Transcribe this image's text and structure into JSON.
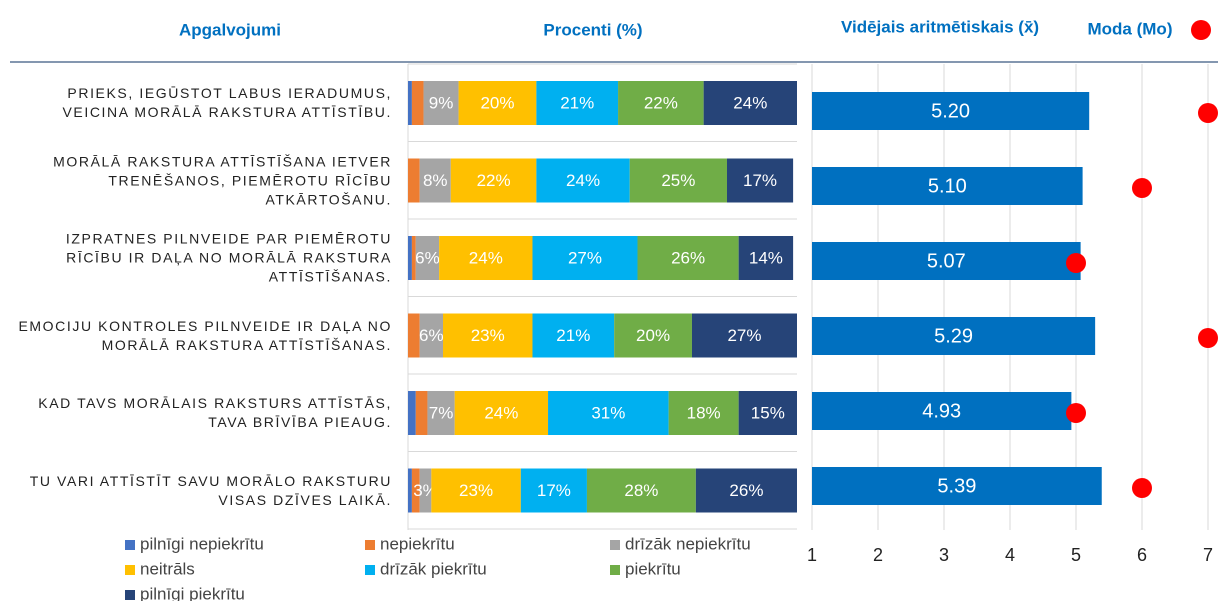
{
  "chart_data": [
    {
      "type": "stacked-barh",
      "title": "Procenti (%)",
      "ylabel": "Apgalvojumi",
      "categories": [
        "PRIEKS, IEGŪSTOT LABUS IERADUMUS, VEICINA MORĀLĀ RAKSTURA ATTĪSTĪBU.",
        "MORĀLĀ RAKSTURA ATTĪSTĪŠANA IETVER TRENĒŠANOS, PIEMĒROTU RĪCĪBU ATKĀRTOŠANU.",
        "IZPRATNES PILNVEIDE PAR PIEMĒROTU RĪCĪBU IR DAĻA NO MORĀLĀ RAKSTURA ATTĪSTĪŠANAS.",
        "EMOCIJU KONTROLES PILNVEIDE IR DAĻA NO MORĀLĀ RAKSTURA ATTĪSTĪŠANAS.",
        "KAD TAVS MORĀLAIS RAKSTURS ATTĪSTĀS, TAVA BRĪVĪBA PIEAUG.",
        "TU VARI ATTĪSTĪT SAVU MORĀLO RAKSTURU VISAS DZĪVES LAIKĀ."
      ],
      "xlim": [
        0,
        100
      ],
      "series": [
        {
          "name": "pilnīgi nepiekrītu",
          "color": "#4472c4",
          "values": [
            1,
            0,
            1,
            0,
            2,
            1
          ],
          "value_labels": [
            null,
            null,
            null,
            null,
            null,
            null
          ]
        },
        {
          "name": "nepiekrītu",
          "color": "#ed7d31",
          "values": [
            3,
            3,
            1,
            3,
            3,
            2
          ],
          "value_labels": [
            null,
            null,
            null,
            null,
            null,
            null
          ]
        },
        {
          "name": "drīzāk nepiekrītu",
          "color": "#a5a5a5",
          "values": [
            9,
            8,
            6,
            6,
            7,
            3
          ],
          "value_labels": [
            "9%",
            "8%",
            "6%",
            "6%",
            "7%",
            "3%"
          ]
        },
        {
          "name": "neitrāls",
          "color": "#ffc000",
          "values": [
            20,
            22,
            24,
            23,
            24,
            23
          ],
          "value_labels": [
            "20%",
            "22%",
            "24%",
            "23%",
            "24%",
            "23%"
          ]
        },
        {
          "name": "drīzāk piekrītu",
          "color": "#00b0f0",
          "values": [
            21,
            24,
            27,
            21,
            31,
            17
          ],
          "value_labels": [
            "21%",
            "24%",
            "27%",
            "21%",
            "31%",
            "17%"
          ]
        },
        {
          "name": "piekrītu",
          "color": "#70ad47",
          "values": [
            22,
            25,
            26,
            20,
            18,
            28
          ],
          "value_labels": [
            "22%",
            "25%",
            "26%",
            "20%",
            "18%",
            "28%"
          ]
        },
        {
          "name": "pilnīgi piekrītu",
          "color": "#264478",
          "values": [
            24,
            17,
            14,
            27,
            15,
            26
          ],
          "value_labels": [
            "24%",
            "17%",
            "14%",
            "27%",
            "15%",
            "26%"
          ]
        }
      ]
    },
    {
      "type": "barh-dot",
      "xlim": [
        1,
        7
      ],
      "xticks": [
        1,
        2,
        3,
        4,
        5,
        6,
        7
      ],
      "series": [
        {
          "name": "Vidējais aritmētiskais (x̄)",
          "color": "#0070c0",
          "values": [
            5.2,
            5.1,
            5.07,
            5.29,
            4.93,
            5.39
          ],
          "value_labels": [
            "5.20",
            "5.10",
            "5.07",
            "5.29",
            "4.93",
            "5.39"
          ]
        },
        {
          "name": "Moda (Mo)",
          "color": "#ff0000",
          "values": [
            7,
            6,
            5,
            7,
            5,
            6
          ]
        }
      ]
    }
  ]
}
